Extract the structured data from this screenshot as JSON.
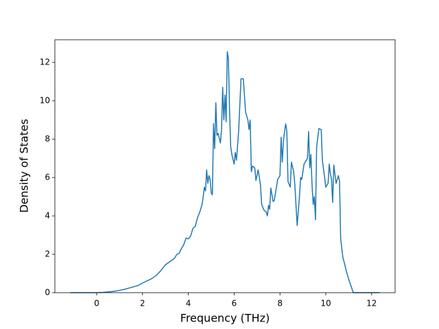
{
  "chart_data": {
    "type": "line",
    "xlabel": "Frequency (THz)",
    "ylabel": "Density of States",
    "color": "#1f77b4",
    "xlim": [
      -1.825,
      13.025
    ],
    "ylim": [
      0,
      13.18
    ],
    "xticks": [
      0,
      2,
      4,
      6,
      8,
      10,
      12
    ],
    "yticks": [
      0,
      2,
      4,
      6,
      8,
      10,
      12
    ],
    "x": [
      -1.15,
      -0.5,
      0,
      0.3,
      0.6,
      0.9,
      1.2,
      1.5,
      1.8,
      2.0,
      2.2,
      2.4,
      2.6,
      2.8,
      3.0,
      3.2,
      3.4,
      3.5,
      3.6,
      3.7,
      3.8,
      3.9,
      4.0,
      4.1,
      4.2,
      4.3,
      4.4,
      4.5,
      4.6,
      4.65,
      4.7,
      4.75,
      4.8,
      4.85,
      4.9,
      4.95,
      5.0,
      5.05,
      5.1,
      5.15,
      5.2,
      5.25,
      5.3,
      5.4,
      5.45,
      5.5,
      5.55,
      5.6,
      5.65,
      5.7,
      5.75,
      5.8,
      5.85,
      5.9,
      6.0,
      6.05,
      6.1,
      6.2,
      6.3,
      6.4,
      6.5,
      6.6,
      6.65,
      6.7,
      6.75,
      6.8,
      6.9,
      6.95,
      7.05,
      7.15,
      7.2,
      7.3,
      7.4,
      7.45,
      7.5,
      7.55,
      7.6,
      7.7,
      7.75,
      7.9,
      8.0,
      8.05,
      8.1,
      8.15,
      8.2,
      8.25,
      8.3,
      8.35,
      8.45,
      8.5,
      8.6,
      8.65,
      8.75,
      8.85,
      8.9,
      8.95,
      9.05,
      9.15,
      9.2,
      9.25,
      9.3,
      9.35,
      9.4,
      9.45,
      9.5,
      9.55,
      9.6,
      9.7,
      9.8,
      9.85,
      9.95,
      10.0,
      10.1,
      10.15,
      10.2,
      10.25,
      10.3,
      10.35,
      10.45,
      10.55,
      10.6,
      10.65,
      10.75,
      10.8,
      10.9,
      11.0,
      11.1,
      11.2,
      11.5,
      12.35
    ],
    "values": [
      0,
      0,
      0,
      0.02,
      0.05,
      0.1,
      0.17,
      0.27,
      0.37,
      0.5,
      0.62,
      0.73,
      0.9,
      1.15,
      1.45,
      1.62,
      1.8,
      2.0,
      2.05,
      2.3,
      2.5,
      2.85,
      2.8,
      2.95,
      3.35,
      3.45,
      3.9,
      4.2,
      4.6,
      5.0,
      5.5,
      5.3,
      6.4,
      5.7,
      6.1,
      5.9,
      5.2,
      5.1,
      8.8,
      7.5,
      9.9,
      8.2,
      8.3,
      7.8,
      8.5,
      10.7,
      9.0,
      10.3,
      8.9,
      12.55,
      12.2,
      9.5,
      7.6,
      7.2,
      6.7,
      7.3,
      6.9,
      8.5,
      11.15,
      11.15,
      9.4,
      9.0,
      8.5,
      9.0,
      6.3,
      6.6,
      6.5,
      5.85,
      6.4,
      5.6,
      4.6,
      4.3,
      4.2,
      4.0,
      4.55,
      4.35,
      5.45,
      4.75,
      4.8,
      5.9,
      6.1,
      8.1,
      6.8,
      7.9,
      8.4,
      8.8,
      8.4,
      5.8,
      5.5,
      6.8,
      6.3,
      5.6,
      3.5,
      5.0,
      6.0,
      5.9,
      6.7,
      6.9,
      7.0,
      8.4,
      6.5,
      7.2,
      5.6,
      4.6,
      5.0,
      3.8,
      7.6,
      8.55,
      8.5,
      6.9,
      6.0,
      5.5,
      5.7,
      6.7,
      6.2,
      5.9,
      4.7,
      6.65,
      5.7,
      6.1,
      5.8,
      2.8,
      1.8,
      1.6,
      1.1,
      0.7,
      0.35,
      0,
      0,
      0
    ]
  }
}
